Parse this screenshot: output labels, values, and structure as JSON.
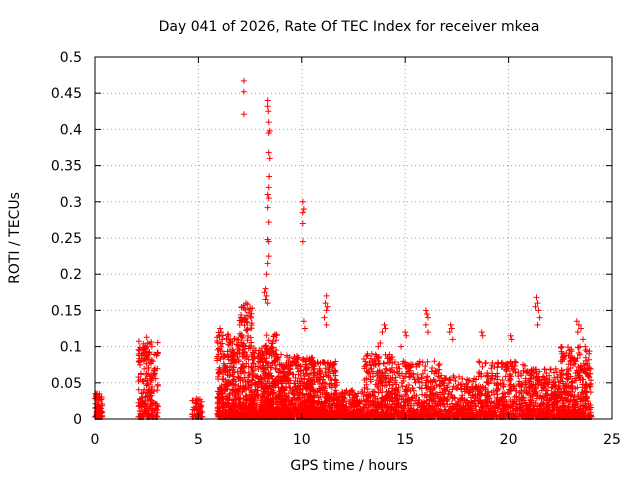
{
  "chart_data": {
    "type": "scatter",
    "title": "Day 041 of 2026, Rate Of TEC Index for receiver mkea",
    "xlabel": "GPS time / hours",
    "ylabel": "ROTI / TECUs",
    "xlim": [
      0,
      25
    ],
    "ylim": [
      0,
      0.5
    ],
    "xticks": [
      0,
      5,
      10,
      15,
      20,
      25
    ],
    "yticks": [
      0,
      0.05,
      0.1,
      0.15,
      0.2,
      0.25,
      0.3,
      0.35,
      0.4,
      0.45,
      0.5
    ],
    "grid": true,
    "marker": "+",
    "series": [
      {
        "name": "ROTI mkea",
        "color": "#ff0000",
        "clusters": [
          {
            "x_start": 0.0,
            "x_end": 0.35,
            "y_max": 0.035,
            "density": 90
          },
          {
            "x_start": 2.1,
            "x_end": 3.05,
            "y_max": 0.11,
            "density": 220
          },
          {
            "x_start": 4.7,
            "x_end": 5.2,
            "y_max": 0.028,
            "density": 60
          },
          {
            "x_start": 5.9,
            "x_end": 7.0,
            "y_max": 0.12,
            "density": 380
          },
          {
            "x_start": 7.0,
            "x_end": 7.6,
            "y_max": 0.16,
            "density": 260
          },
          {
            "x_start": 7.6,
            "x_end": 8.2,
            "y_max": 0.1,
            "density": 220
          },
          {
            "x_start": 8.2,
            "x_end": 8.8,
            "y_max": 0.12,
            "density": 260
          },
          {
            "x_start": 8.8,
            "x_end": 9.8,
            "y_max": 0.09,
            "density": 320
          },
          {
            "x_start": 9.8,
            "x_end": 10.6,
            "y_max": 0.085,
            "density": 300
          },
          {
            "x_start": 10.6,
            "x_end": 11.7,
            "y_max": 0.08,
            "density": 320
          },
          {
            "x_start": 11.7,
            "x_end": 13.0,
            "y_max": 0.04,
            "density": 260
          },
          {
            "x_start": 13.0,
            "x_end": 14.5,
            "y_max": 0.09,
            "density": 360
          },
          {
            "x_start": 14.5,
            "x_end": 16.8,
            "y_max": 0.08,
            "density": 480
          },
          {
            "x_start": 16.8,
            "x_end": 18.5,
            "y_max": 0.06,
            "density": 300
          },
          {
            "x_start": 18.5,
            "x_end": 21.0,
            "y_max": 0.08,
            "density": 480
          },
          {
            "x_start": 21.0,
            "x_end": 22.5,
            "y_max": 0.07,
            "density": 340
          },
          {
            "x_start": 22.5,
            "x_end": 24.0,
            "y_max": 0.1,
            "density": 420
          }
        ],
        "points": [
          [
            7.2,
            0.467
          ],
          [
            7.2,
            0.452
          ],
          [
            7.2,
            0.421
          ],
          [
            8.35,
            0.44
          ],
          [
            8.35,
            0.432
          ],
          [
            8.38,
            0.425
          ],
          [
            8.4,
            0.41
          ],
          [
            8.45,
            0.398
          ],
          [
            8.4,
            0.395
          ],
          [
            8.4,
            0.368
          ],
          [
            8.45,
            0.36
          ],
          [
            8.42,
            0.335
          ],
          [
            8.4,
            0.32
          ],
          [
            8.35,
            0.31
          ],
          [
            8.4,
            0.305
          ],
          [
            8.35,
            0.292
          ],
          [
            8.4,
            0.272
          ],
          [
            8.35,
            0.248
          ],
          [
            8.4,
            0.245
          ],
          [
            8.4,
            0.225
          ],
          [
            8.35,
            0.215
          ],
          [
            8.3,
            0.2
          ],
          [
            8.25,
            0.18
          ],
          [
            8.2,
            0.175
          ],
          [
            8.3,
            0.17
          ],
          [
            8.25,
            0.165
          ],
          [
            8.35,
            0.16
          ],
          [
            10.05,
            0.3
          ],
          [
            10.1,
            0.29
          ],
          [
            10.05,
            0.285
          ],
          [
            10.05,
            0.27
          ],
          [
            10.05,
            0.245
          ],
          [
            11.2,
            0.17
          ],
          [
            11.15,
            0.16
          ],
          [
            11.25,
            0.155
          ],
          [
            11.2,
            0.15
          ],
          [
            11.1,
            0.14
          ],
          [
            11.2,
            0.13
          ],
          [
            21.35,
            0.168
          ],
          [
            21.4,
            0.16
          ],
          [
            21.3,
            0.155
          ],
          [
            21.45,
            0.15
          ],
          [
            21.5,
            0.14
          ],
          [
            21.4,
            0.13
          ],
          [
            2.5,
            0.113
          ],
          [
            2.55,
            0.105
          ],
          [
            2.45,
            0.1
          ],
          [
            2.6,
            0.09
          ],
          [
            6.05,
            0.125
          ],
          [
            6.1,
            0.12
          ],
          [
            6.0,
            0.115
          ],
          [
            7.3,
            0.16
          ],
          [
            7.05,
            0.14
          ],
          [
            7.1,
            0.135
          ],
          [
            7.0,
            0.13
          ],
          [
            10.1,
            0.135
          ],
          [
            10.15,
            0.125
          ],
          [
            14.0,
            0.13
          ],
          [
            14.05,
            0.125
          ],
          [
            13.9,
            0.12
          ],
          [
            13.7,
            0.1
          ],
          [
            13.8,
            0.105
          ],
          [
            15.0,
            0.12
          ],
          [
            15.05,
            0.115
          ],
          [
            14.8,
            0.1
          ],
          [
            16.0,
            0.15
          ],
          [
            16.05,
            0.145
          ],
          [
            16.1,
            0.14
          ],
          [
            16.0,
            0.13
          ],
          [
            16.1,
            0.12
          ],
          [
            17.2,
            0.13
          ],
          [
            17.25,
            0.125
          ],
          [
            17.15,
            0.12
          ],
          [
            17.3,
            0.11
          ],
          [
            18.7,
            0.12
          ],
          [
            18.75,
            0.115
          ],
          [
            20.1,
            0.115
          ],
          [
            20.15,
            0.11
          ],
          [
            23.3,
            0.135
          ],
          [
            23.4,
            0.13
          ],
          [
            23.5,
            0.125
          ],
          [
            23.35,
            0.12
          ],
          [
            23.6,
            0.11
          ],
          [
            23.45,
            0.1
          ],
          [
            0.1,
            0.035
          ],
          [
            0.15,
            0.03
          ],
          [
            4.9,
            0.028
          ],
          [
            2.9,
            0.07
          ]
        ]
      }
    ]
  }
}
